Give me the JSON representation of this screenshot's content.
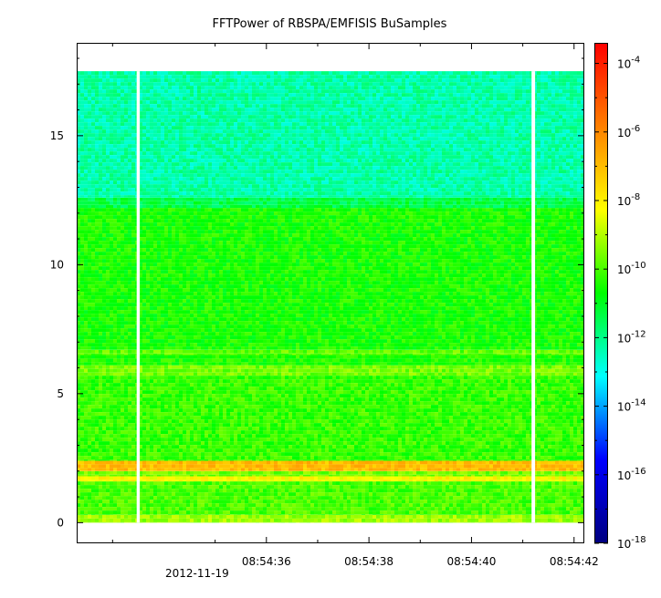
{
  "chart_data": {
    "type": "heatmap",
    "title": "FFTPower of RBSPA/EMFISIS  BuSamples",
    "xlabel": "",
    "ylabel": "",
    "x_tick_labels": [
      "08:54:36",
      "08:54:38",
      "08:54:40",
      "08:54:42"
    ],
    "x_tick_seconds": [
      36,
      38,
      40,
      42
    ],
    "x_date_label": "2012-11-19",
    "xlim_seconds": [
      32.3,
      42.2
    ],
    "y_ticks": [
      0,
      5,
      10,
      15
    ],
    "ylim": [
      -0.8,
      18.6
    ],
    "data_y_range": [
      0,
      17.5
    ],
    "data_gaps_seconds": [
      [
        33.47,
        33.53
      ],
      [
        41.17,
        41.24
      ]
    ],
    "bands": [
      {
        "y_range": [
          0,
          0.3
        ],
        "log_power": -9.2
      },
      {
        "y_range": [
          0.3,
          1.6
        ],
        "log_power": -10.0
      },
      {
        "y_range": [
          1.6,
          1.8
        ],
        "log_power": -8.2
      },
      {
        "y_range": [
          1.8,
          2.0
        ],
        "log_power": -9.6
      },
      {
        "y_range": [
          2.0,
          2.4
        ],
        "log_power": -7.0
      },
      {
        "y_range": [
          2.4,
          5.7
        ],
        "log_power": -10.2
      },
      {
        "y_range": [
          5.7,
          6.1
        ],
        "log_power": -9.6
      },
      {
        "y_range": [
          6.1,
          6.5
        ],
        "log_power": -10.4
      },
      {
        "y_range": [
          6.5,
          6.7
        ],
        "log_power": -9.8
      },
      {
        "y_range": [
          6.7,
          12.2
        ],
        "log_power": -10.5
      },
      {
        "y_range": [
          12.2,
          12.6
        ],
        "log_power": -11.4
      },
      {
        "y_range": [
          12.6,
          17.5
        ],
        "log_power": -12.3
      }
    ],
    "colorbar": {
      "scale": "log",
      "range_exponent": [
        -18,
        -3.4
      ],
      "tick_exponents": [
        -18,
        -16,
        -14,
        -12,
        -10,
        -8,
        -6,
        -4
      ],
      "tick_base": "10",
      "colors": [
        "#000080",
        "#0000ff",
        "#00ffff",
        "#00ff00",
        "#ffff00",
        "#ff8000",
        "#ff0000"
      ]
    }
  }
}
